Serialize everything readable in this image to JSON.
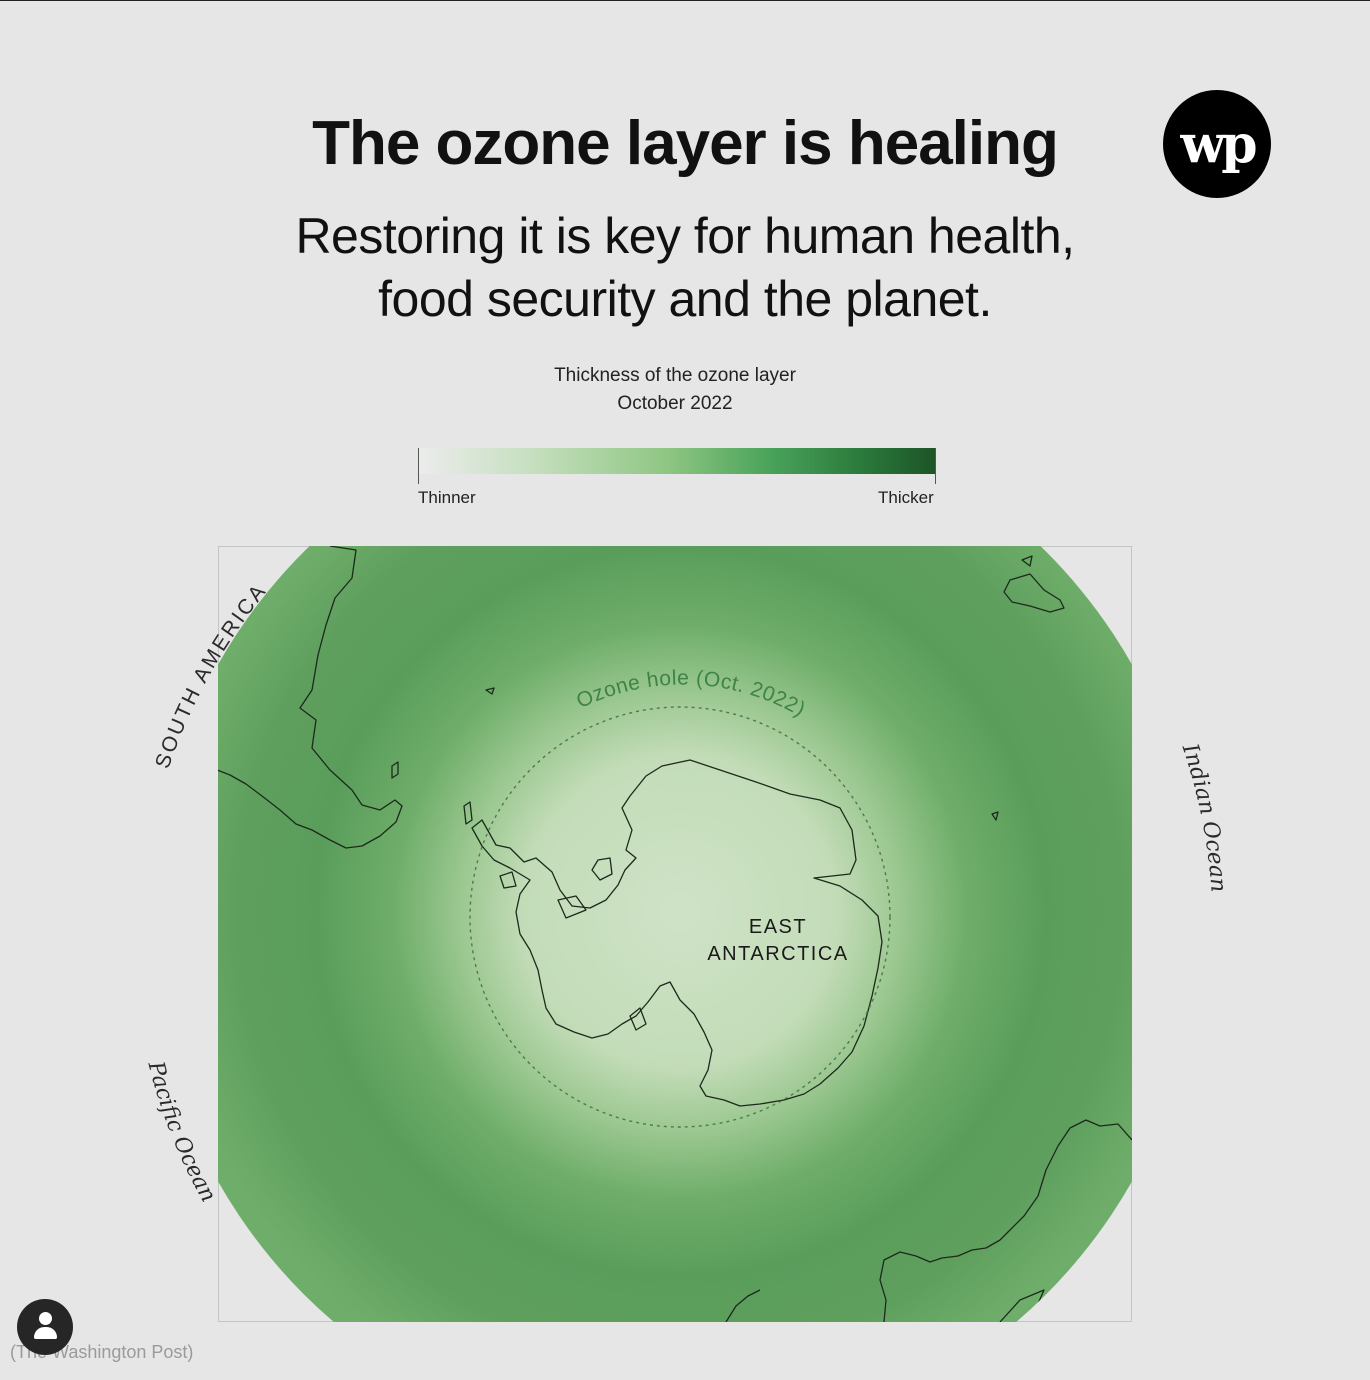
{
  "header": {
    "title": "The ozone layer is healing",
    "subtitle": "Restoring it is key for human health, food security and the planet.",
    "logo_text": "wp"
  },
  "legend": {
    "title_line1": "Thickness of the ozone layer",
    "title_line2": "October 2022",
    "low_label": "Thinner",
    "high_label": "Thicker",
    "colors": [
      "#ececec",
      "#c6dfbf",
      "#8fc683",
      "#4aa35a",
      "#2c7b3d",
      "#1c5427"
    ]
  },
  "map": {
    "region_label_line1": "EAST",
    "region_label_line2": "ANTARCTICA",
    "hole_label": "Ozone hole (Oct. 2022)",
    "continent_label": "SOUTH AMERICA",
    "ocean_right": "Indian Ocean",
    "ocean_left": "Pacific Ocean",
    "projection": "south-polar orthographic",
    "ocean_color": "#67a565",
    "hole_center_color": "#cfe3c7"
  },
  "footer": {
    "credit": "(The Washington Post)",
    "avatar_icon": "user-icon"
  }
}
